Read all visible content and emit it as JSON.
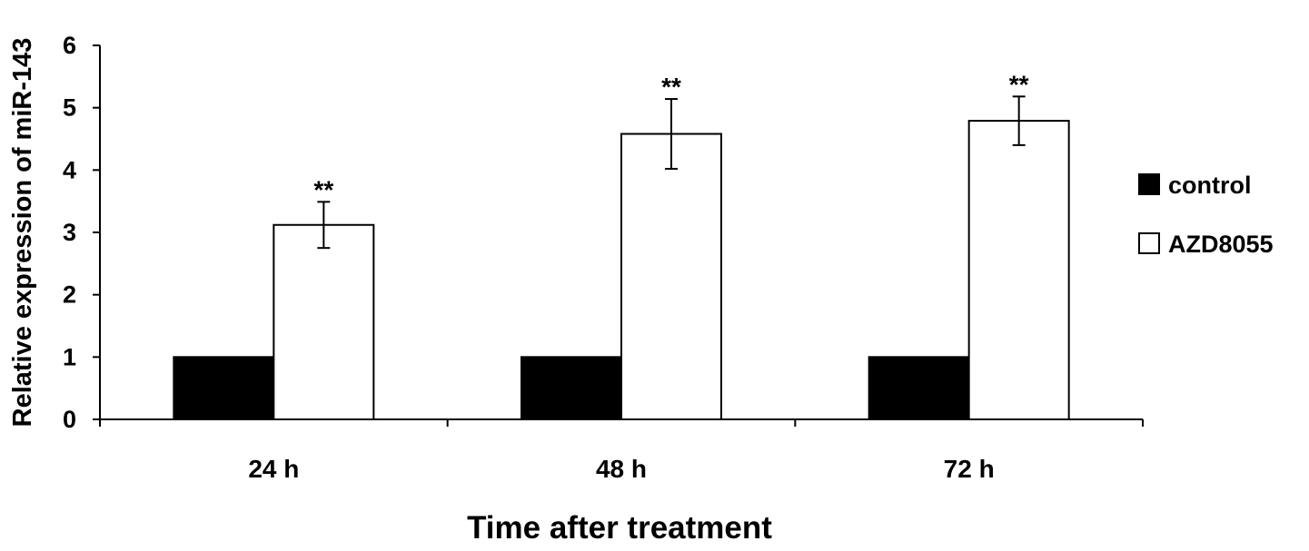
{
  "chart_data": {
    "type": "bar",
    "title": "",
    "xlabel": "Time after treatment",
    "ylabel": "Relative expression of miR-143",
    "categories": [
      "24 h",
      "48 h",
      "72 h"
    ],
    "ylim": [
      0,
      6
    ],
    "yticks": [
      "0",
      "1",
      "2",
      "3",
      "4",
      "5",
      "6"
    ],
    "grid": false,
    "legend_position": "right",
    "series": [
      {
        "name": "control",
        "values": [
          1.0,
          1.0,
          1.0
        ],
        "errors": [
          null,
          null,
          null
        ],
        "color": "#000000"
      },
      {
        "name": "AZD8055",
        "values": [
          3.12,
          4.58,
          4.79
        ],
        "errors": [
          0.37,
          0.56,
          0.39
        ],
        "color": "#ffffff"
      }
    ],
    "annotations": [
      {
        "category": "24 h",
        "series": "AZD8055",
        "text": "**"
      },
      {
        "category": "48 h",
        "series": "AZD8055",
        "text": "**"
      },
      {
        "category": "72 h",
        "series": "AZD8055",
        "text": "**"
      }
    ]
  }
}
